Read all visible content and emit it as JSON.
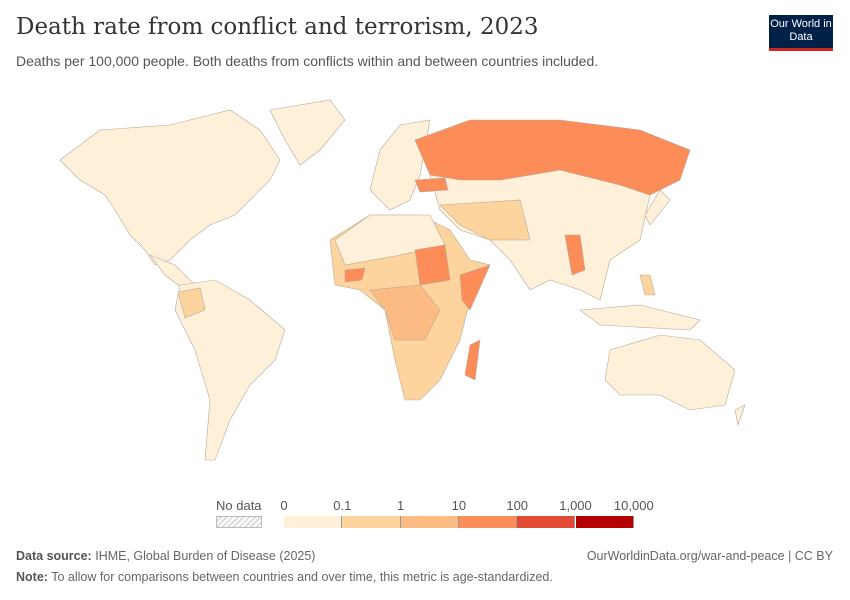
{
  "header": {
    "title": "Death rate from conflict and terrorism, 2023",
    "subtitle": "Deaths per 100,000 people. Both deaths from conflicts within and between countries included.",
    "logo": "Our World in Data"
  },
  "chart_data": {
    "type": "choropleth",
    "title": "Death rate from conflict and terrorism, 2023",
    "unit": "Deaths per 100,000 people",
    "legend": {
      "no_data_label": "No data",
      "ticks": [
        "0",
        "0.1",
        "1",
        "10",
        "100",
        "1,000",
        "10,000"
      ],
      "colors": [
        "#fef0d9",
        "#fdd49e",
        "#fdbb84",
        "#fc8d59",
        "#e34a33",
        "#b30000"
      ],
      "no_data_pattern": "hatched-gray"
    },
    "regions": [
      {
        "name": "Russia",
        "bin": "10-100"
      },
      {
        "name": "Ukraine",
        "bin": "10-100"
      },
      {
        "name": "Sudan",
        "bin": "10-100"
      },
      {
        "name": "Somalia",
        "bin": "10-100"
      },
      {
        "name": "Burkina Faso",
        "bin": "10-100"
      },
      {
        "name": "Myanmar",
        "bin": "10-100"
      },
      {
        "name": "Madagascar",
        "bin": "10-100"
      },
      {
        "name": "Central & Southern Africa",
        "bin": "0.1-10"
      },
      {
        "name": "Middle East",
        "bin": "0.1-10"
      },
      {
        "name": "Colombia",
        "bin": "0.1-10"
      },
      {
        "name": "Philippines",
        "bin": "0.1-10"
      },
      {
        "name": "Most other countries",
        "bin": "0-0.1"
      }
    ]
  },
  "footer": {
    "source_label": "Data source:",
    "source": "IHME, Global Burden of Disease (2025)",
    "url": "OurWorldinData.org/war-and-peace | CC BY",
    "note_label": "Note:",
    "note": "To allow for comparisons between countries and over time, this metric is age-standardized."
  }
}
